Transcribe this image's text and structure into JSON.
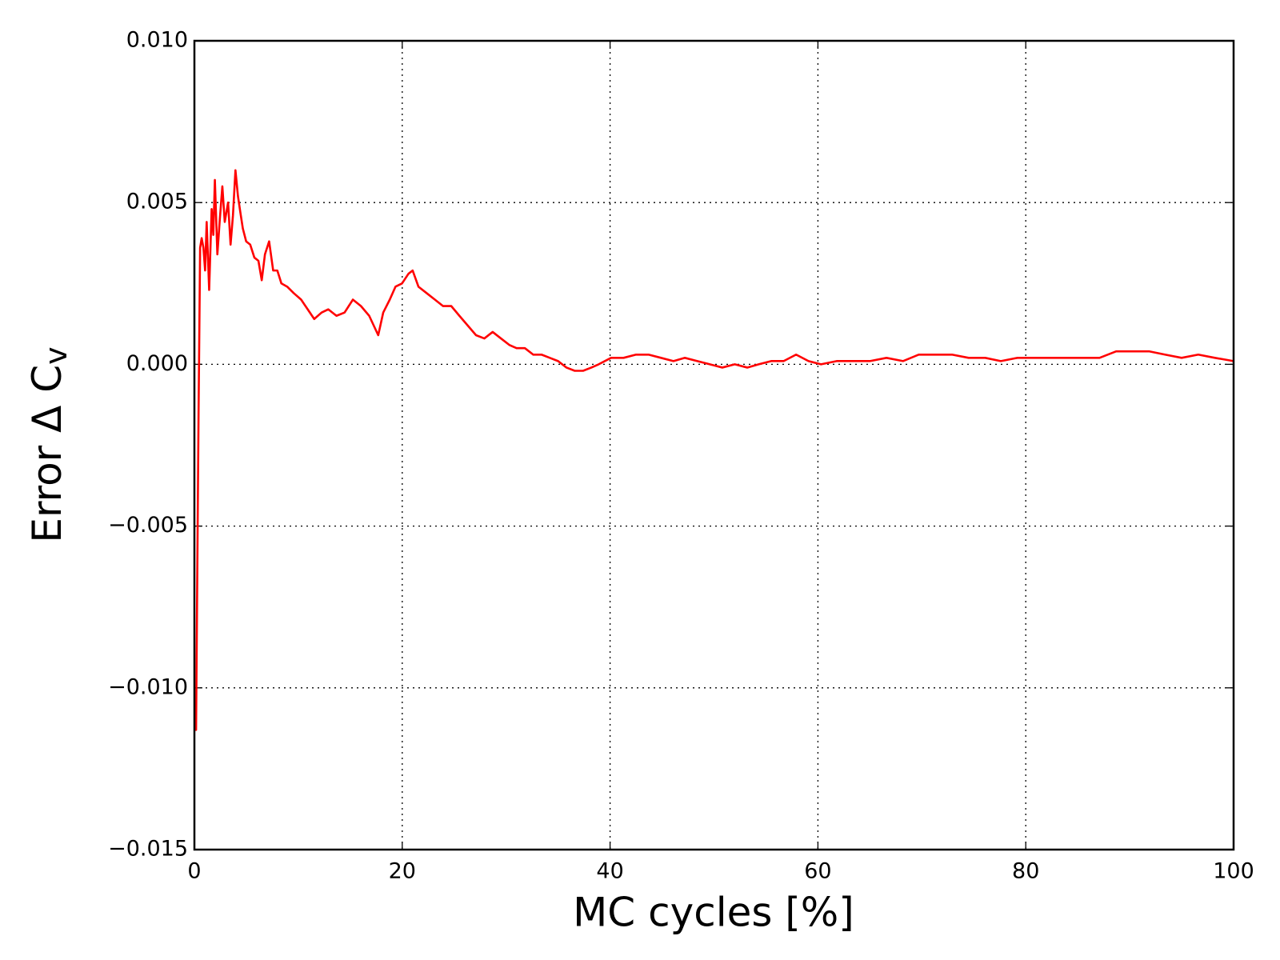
{
  "chart_data": {
    "type": "line",
    "xlabel": "MC cycles [%]",
    "ylabel": {
      "text": "Error  Δ C",
      "subscript": "v"
    },
    "x": [
      0.08,
      0.16,
      0.24,
      0.4,
      0.55,
      0.7,
      0.87,
      1.03,
      1.18,
      1.42,
      1.66,
      1.82,
      1.97,
      2.21,
      2.45,
      2.69,
      2.92,
      3.24,
      3.48,
      3.71,
      3.95,
      4.19,
      4.42,
      4.66,
      4.98,
      5.37,
      5.77,
      6.16,
      6.48,
      6.79,
      7.19,
      7.58,
      7.98,
      8.37,
      8.93,
      9.56,
      10.27,
      10.9,
      11.53,
      12.24,
      12.88,
      13.67,
      14.45,
      15.25,
      16.03,
      16.82,
      17.69,
      18.17,
      18.8,
      19.35,
      19.98,
      20.6,
      21.0,
      21.56,
      22.35,
      23.14,
      23.93,
      24.72,
      25.5,
      26.3,
      27.1,
      27.9,
      28.7,
      29.5,
      30.3,
      31.0,
      31.8,
      32.6,
      33.4,
      34.2,
      35.0,
      35.8,
      36.6,
      37.4,
      38.2,
      38.9,
      40.1,
      41.3,
      42.5,
      43.7,
      44.9,
      46.1,
      47.2,
      48.4,
      49.6,
      50.8,
      52.0,
      53.2,
      54.3,
      55.5,
      56.7,
      57.9,
      59.1,
      60.3,
      61.8,
      63.4,
      65.0,
      66.6,
      68.2,
      69.7,
      71.3,
      72.9,
      74.5,
      76.1,
      77.6,
      79.2,
      80.8,
      82.4,
      84.0,
      85.5,
      87.1,
      88.7,
      90.3,
      91.9,
      93.4,
      95.0,
      96.6,
      98.2,
      100
    ],
    "series": [
      {
        "color": "#ff0000",
        "values": [
          -0.0112,
          -0.0113,
          -0.008,
          -0.0015,
          0.0036,
          0.0039,
          0.0036,
          0.0029,
          0.0044,
          0.0023,
          0.0048,
          0.004,
          0.0057,
          0.0034,
          0.0045,
          0.0055,
          0.0044,
          0.005,
          0.0037,
          0.0046,
          0.006,
          0.0052,
          0.0047,
          0.0042,
          0.0038,
          0.0037,
          0.0033,
          0.0032,
          0.0026,
          0.0034,
          0.0038,
          0.0029,
          0.0029,
          0.0025,
          0.0024,
          0.0022,
          0.002,
          0.0017,
          0.0014,
          0.0016,
          0.0017,
          0.0015,
          0.0016,
          0.002,
          0.0018,
          0.0015,
          0.0009,
          0.0016,
          0.002,
          0.0024,
          0.0025,
          0.0028,
          0.0029,
          0.0024,
          0.0022,
          0.002,
          0.0018,
          0.0018,
          0.0015,
          0.0012,
          0.0009,
          0.0008,
          0.001,
          0.0008,
          0.0006,
          0.0005,
          0.0005,
          0.0003,
          0.0003,
          0.0002,
          0.0001,
          -0.0001,
          -0.0002,
          -0.0002,
          -0.0001,
          0.0,
          0.0002,
          0.0002,
          0.0003,
          0.0003,
          0.0002,
          0.0001,
          0.0002,
          0.0001,
          0.0,
          -0.0001,
          0.0,
          -0.0001,
          0.0,
          0.0001,
          0.0001,
          0.0003,
          0.0001,
          0.0,
          0.0001,
          0.0001,
          0.0001,
          0.0002,
          0.0001,
          0.0003,
          0.0003,
          0.0003,
          0.0002,
          0.0002,
          0.0001,
          0.0002,
          0.0002,
          0.0002,
          0.0002,
          0.0002,
          0.0002,
          0.0004,
          0.0004,
          0.0004,
          0.0003,
          0.0002,
          0.0003,
          0.0002,
          0.0001
        ]
      }
    ],
    "xlim": [
      0,
      100
    ],
    "xticks": [
      0,
      20,
      40,
      60,
      80,
      100
    ],
    "ylim": [
      -0.015,
      0.01
    ],
    "yticks": [
      {
        "value": -0.015,
        "label": "−0.015"
      },
      {
        "value": -0.01,
        "label": "−0.010"
      },
      {
        "value": -0.005,
        "label": "−0.005"
      },
      {
        "value": 0,
        "label": "0.000"
      },
      0.005,
      {
        "value": 0.01,
        "label": "0.010"
      }
    ],
    "grid": true
  }
}
